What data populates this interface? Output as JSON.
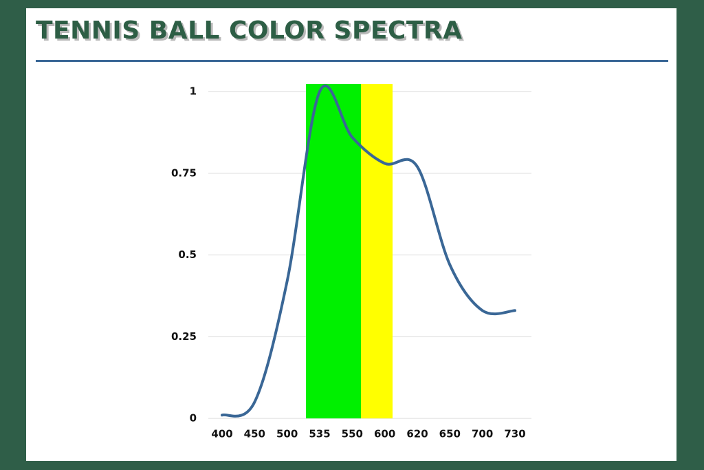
{
  "chart_data": {
    "type": "line",
    "title": "Tennis Ball Color Spectra",
    "categories": [
      "400",
      "450",
      "500",
      "535",
      "550",
      "600",
      "620",
      "650",
      "700",
      "730"
    ],
    "series": [
      {
        "color": "#3a6796",
        "values": [
          0.01,
          0.05,
          0.42,
          1.0,
          0.86,
          0.78,
          0.77,
          0.47,
          0.33,
          0.33
        ]
      }
    ],
    "ylim": [
      0,
      1
    ],
    "yticks": [
      0,
      0.25,
      0.5,
      0.75,
      1
    ],
    "grid": true
  }
}
